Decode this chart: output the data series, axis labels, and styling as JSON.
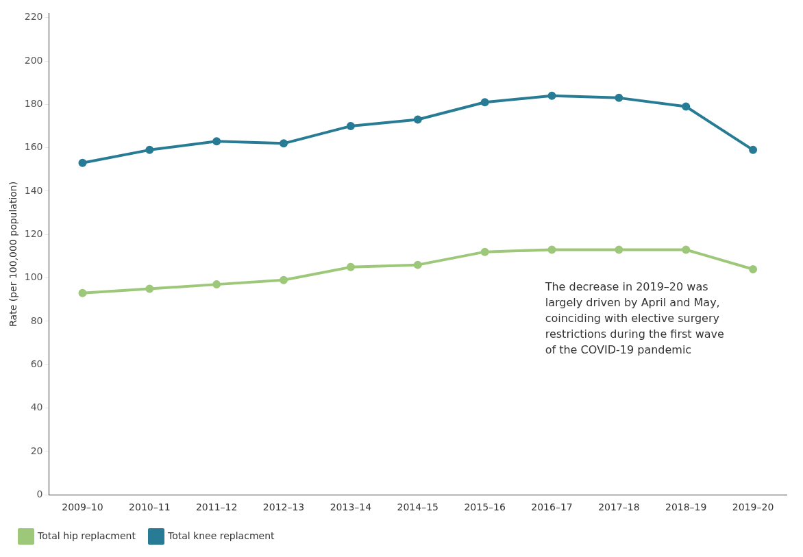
{
  "chart_data": {
    "type": "line",
    "ylabel": "Rate (per 100,000 population)",
    "categories": [
      "2009–10",
      "2010–11",
      "2011–12",
      "2012–13",
      "2013–14",
      "2014–15",
      "2015–16",
      "2016–17",
      "2017–18",
      "2018–19",
      "2019–20"
    ],
    "series": [
      {
        "name": "Total hip replacment",
        "color": "#9dc87a",
        "values": [
          93,
          95,
          97,
          99,
          105,
          106,
          112,
          113,
          113,
          113,
          104
        ]
      },
      {
        "name": "Total knee replacment",
        "color": "#277b94",
        "values": [
          153,
          159,
          163,
          162,
          170,
          173,
          181,
          184,
          183,
          179,
          159
        ]
      }
    ],
    "ylim": [
      0,
      222
    ],
    "yticks": [
      0,
      20,
      40,
      60,
      80,
      100,
      120,
      140,
      160,
      180,
      200,
      220
    ],
    "grid": false,
    "legend": "bottom left",
    "marker": "circle",
    "line_style": "solid",
    "annotations": [
      "The decrease in 2019–20 was largely driven by April and May, coinciding with elective surgery restrictions during the first wave of the COVID-19 pandemic"
    ]
  }
}
